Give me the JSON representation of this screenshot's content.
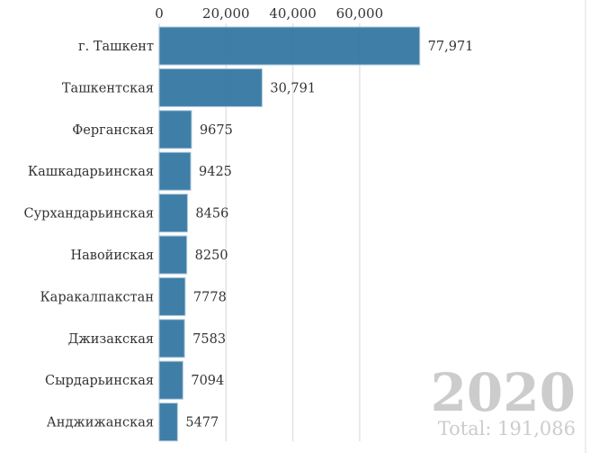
{
  "chart_data": {
    "type": "bar",
    "orientation": "horizontal",
    "categories": [
      "г. Ташкент",
      "Ташкентская",
      "Ферганская",
      "Кашкадарьинская",
      "Сурхандарьинская",
      "Навойиская",
      "Каракалпакстан",
      "Джизакская",
      "Сырдарьинская",
      "Анджижанская"
    ],
    "values": [
      77971,
      30791,
      9675,
      9425,
      8456,
      8250,
      7778,
      7583,
      7094,
      5477
    ],
    "value_labels": [
      "77,971",
      "30,791",
      "9675",
      "9425",
      "8456",
      "8250",
      "7778",
      "7583",
      "7094",
      "5477"
    ],
    "xticks": [
      0,
      20000,
      40000,
      60000
    ],
    "xtick_labels": [
      "0",
      "20,000",
      "40,000",
      "60,000"
    ],
    "xlim": [
      0,
      78000
    ],
    "grid": true,
    "bar_color": "#2f73a0",
    "year": "2020",
    "total_label": "Total: 191,086"
  }
}
